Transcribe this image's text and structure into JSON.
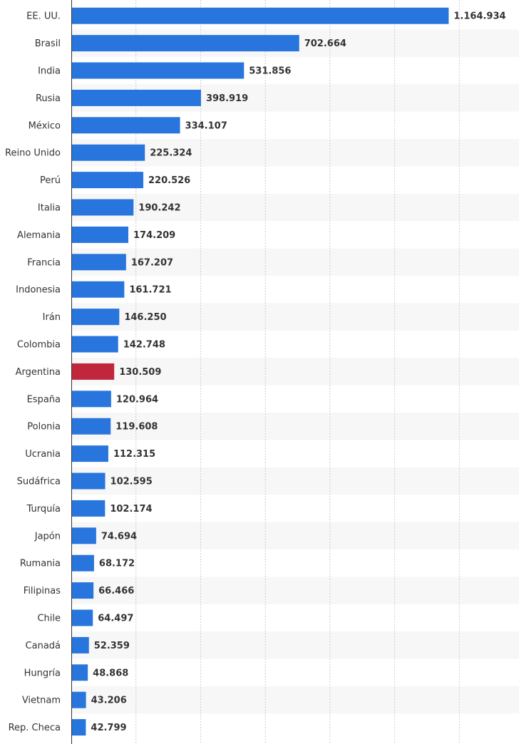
{
  "chart_data": {
    "type": "bar",
    "orientation": "horizontal",
    "categories": [
      "EE. UU.",
      "Brasil",
      "India",
      "Rusia",
      "México",
      "Reino Unido",
      "Perú",
      "Italia",
      "Alemania",
      "Francia",
      "Indonesia",
      "Irán",
      "Colombia",
      "Argentina",
      "España",
      "Polonia",
      "Ucrania",
      "Sudáfrica",
      "Turquía",
      "Japón",
      "Rumania",
      "Filipinas",
      "Chile",
      "Canadá",
      "Hungría",
      "Vietnam",
      "Rep. Checa"
    ],
    "values": [
      1164934,
      702664,
      531856,
      398919,
      334107,
      225324,
      220526,
      190242,
      174209,
      167207,
      161721,
      146250,
      142748,
      130509,
      120964,
      119608,
      112315,
      102595,
      102174,
      74694,
      68172,
      66466,
      64497,
      52359,
      48868,
      43206,
      42799
    ],
    "value_labels": [
      "1.164.934",
      "702.664",
      "531.856",
      "398.919",
      "334.107",
      "225.324",
      "220.526",
      "190.242",
      "174.209",
      "167.207",
      "161.721",
      "146.250",
      "142.748",
      "130.509",
      "120.964",
      "119.608",
      "112.315",
      "102.595",
      "102.174",
      "74.694",
      "68.172",
      "66.466",
      "64.497",
      "52.359",
      "48.868",
      "43.206",
      "42.799"
    ],
    "highlight_category": "Argentina",
    "colors": {
      "bar": "#2876dd",
      "highlight": "#c0273d",
      "grid": "#cccccc",
      "band": "#f7f7f7",
      "axis": "#333333"
    },
    "xlim": [
      0,
      1400000
    ],
    "grid": true,
    "title": "",
    "xlabel": "",
    "ylabel": ""
  }
}
